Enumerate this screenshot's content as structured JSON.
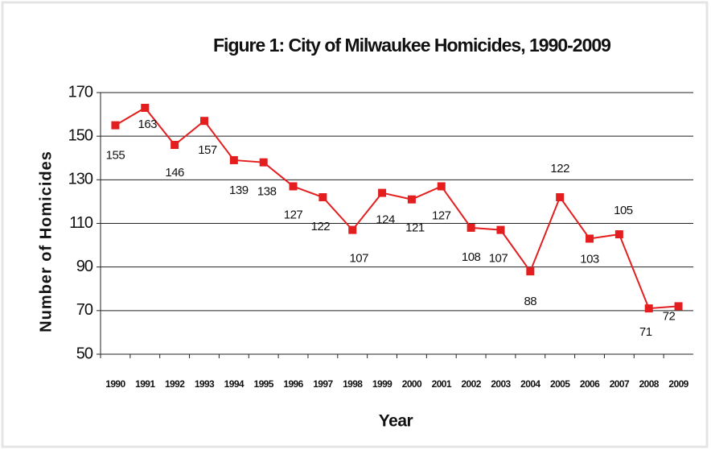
{
  "chart_data": {
    "type": "line",
    "title": "Figure 1: City of Milwaukee Homicides, 1990-2009",
    "x_label": "Year",
    "y_label": "Number of Homicides",
    "categories": [
      "1990",
      "1991",
      "1992",
      "1993",
      "1994",
      "1995",
      "1996",
      "1997",
      "1998",
      "1999",
      "2000",
      "2001",
      "2002",
      "2003",
      "2004",
      "2005",
      "2006",
      "2007",
      "2008",
      "2009"
    ],
    "series": [
      {
        "name": "Homicides",
        "color": "#e41e1e",
        "values": [
          155,
          163,
          146,
          157,
          139,
          138,
          127,
          122,
          107,
          124,
          121,
          127,
          108,
          107,
          88,
          122,
          103,
          105,
          71,
          72
        ]
      }
    ],
    "ylim": [
      50,
      170
    ],
    "yticks": [
      50,
      70,
      90,
      110,
      130,
      150,
      170
    ],
    "grid": true
  }
}
